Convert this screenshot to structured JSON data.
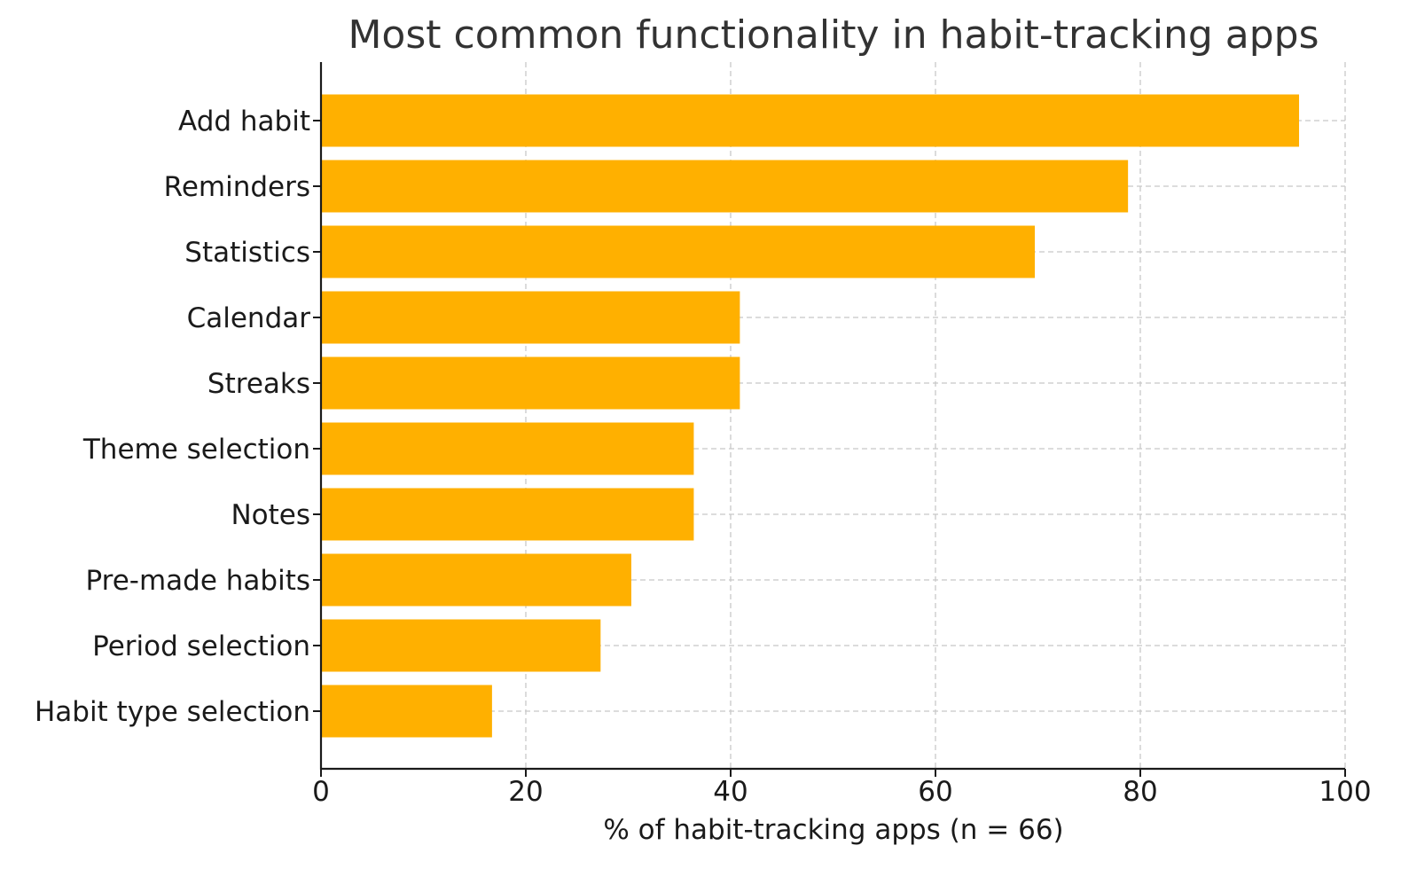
{
  "chart_data": {
    "type": "bar",
    "orientation": "horizontal",
    "title": "Most common functionality in habit-tracking apps",
    "xlabel": "% of habit-tracking apps (n = 66)",
    "ylabel": "",
    "xlim": [
      0,
      100
    ],
    "xticks": [
      0,
      20,
      40,
      60,
      80,
      100
    ],
    "grid": true,
    "categories": [
      "Add habit",
      "Reminders",
      "Statistics",
      "Calendar",
      "Streaks",
      "Theme selection",
      "Notes",
      "Pre-made habits",
      "Period selection",
      "Habit type selection"
    ],
    "values": [
      95.5,
      78.8,
      69.7,
      40.9,
      40.9,
      36.4,
      36.4,
      30.3,
      27.3,
      16.7
    ],
    "bar_color": "#FFB000"
  }
}
